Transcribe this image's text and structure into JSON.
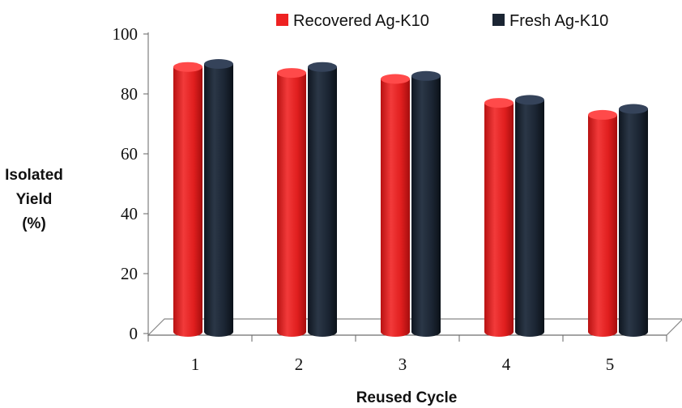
{
  "chart_data": {
    "type": "bar",
    "categories": [
      "1",
      "2",
      "3",
      "4",
      "5"
    ],
    "series": [
      {
        "name": "Recovered Ag-K10",
        "color": "#ee2222",
        "values": [
          89,
          87,
          85,
          77,
          73
        ]
      },
      {
        "name": "Fresh Ag-K10",
        "color": "#1b2533",
        "values": [
          90,
          89,
          86,
          78,
          75
        ]
      }
    ],
    "xlabel": "Reused Cycle",
    "ylabel": [
      "Isolated",
      "Yield",
      "(%)"
    ],
    "ylim": [
      0,
      100
    ],
    "yticks": [
      0,
      20,
      40,
      60,
      80,
      100
    ],
    "grid": false,
    "legend_position": "top-right",
    "style": "3d-cylinder"
  }
}
